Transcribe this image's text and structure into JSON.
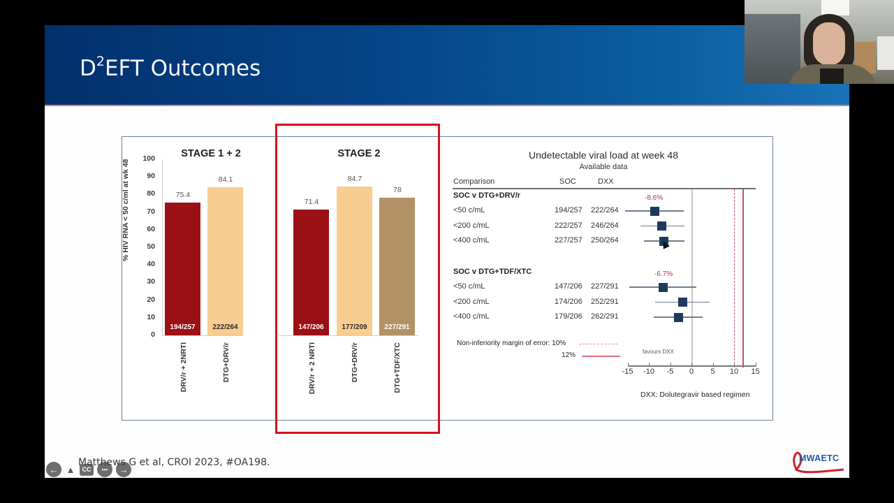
{
  "slide": {
    "title_prefix": "D",
    "title_sup": "2",
    "title_suffix": "EFT Outcomes",
    "citation": "Matthews G et al, CROI 2023, #OA198.",
    "logo_text": "MWAETC",
    "colors": {
      "header_left": "#03306d",
      "header_right": "#1a72b8",
      "highlight_box": "#d4121c",
      "bar_drv": "#9b1015",
      "bar_dtg_drv": "#f9cd90",
      "bar_dtg_tdf": "#b29265",
      "forest_marker": "#1d3a5c",
      "ni_margin": "#cf4b6a"
    }
  },
  "presentation_controls": {
    "prev_icon": "←",
    "pointer_icon": "▲",
    "cc_label": "CC",
    "more_icon": "•••",
    "next_icon": "→"
  },
  "chart_data": [
    {
      "type": "bar",
      "title": "STAGE 1 + 2",
      "ylabel": "% HIV RNA < 50 c/ml at wk 48",
      "ylim": [
        0,
        100
      ],
      "yticks": [
        0,
        10,
        20,
        30,
        40,
        50,
        60,
        70,
        80,
        90,
        100
      ],
      "categories": [
        "DRV/r + 2NRTI",
        "DTG+DRV/r"
      ],
      "values": [
        75.4,
        84.1
      ],
      "value_labels": [
        "75.4",
        "84.1"
      ],
      "counts": [
        "194/257",
        "222/264"
      ],
      "grid": false
    },
    {
      "type": "bar",
      "title": "STAGE 2",
      "ylabel": "% HIV RNA < 50 c/ml at wk 48",
      "ylim": [
        0,
        100
      ],
      "categories": [
        "DRV/r + 2 NRTI",
        "DTG+DRV/r",
        "DTG+TDF/XTC"
      ],
      "values": [
        71.4,
        84.7,
        78
      ],
      "value_labels": [
        "71.4",
        "84.7",
        "78"
      ],
      "counts": [
        "147/206",
        "177/209",
        "227/291"
      ],
      "highlighted": true,
      "grid": false
    },
    {
      "type": "forest",
      "title": "Undetectable viral load at week 48",
      "subtitle": "Available data",
      "columns": [
        "Comparison",
        "SOC",
        "DXX"
      ],
      "xlim": [
        -15,
        15
      ],
      "xticks": [
        -15,
        -10,
        -5,
        0,
        5,
        10,
        15
      ],
      "xticklabels": [
        "-15",
        "-10",
        "-5",
        "0",
        "5",
        "10",
        "15"
      ],
      "groups": [
        {
          "label": "SOC v DTG+DRV/r",
          "annotation": "-8.6%",
          "rows": [
            {
              "label": "<50 c/mL",
              "soc": "194/257",
              "dxx": "222/264",
              "estimate": -8.6,
              "ci": [
                -15.5,
                -1.8
              ]
            },
            {
              "label": "<200 c/mL",
              "soc": "222/257",
              "dxx": "246/264",
              "estimate": -6.9,
              "ci": [
                -12.0,
                -1.6
              ]
            },
            {
              "label": "<400 c/mL",
              "soc": "227/257",
              "dxx": "250/264",
              "estimate": -6.4,
              "ci": [
                -11.1,
                -1.6
              ]
            }
          ]
        },
        {
          "label": "SOC v DTG+TDF/XTC",
          "annotation": "-6.7%",
          "rows": [
            {
              "label": "<50 c/mL",
              "soc": "147/206",
              "dxx": "227/291",
              "estimate": -6.7,
              "ci": [
                -14.6,
                1.1
              ]
            },
            {
              "label": "<200 c/mL",
              "soc": "174/206",
              "dxx": "252/291",
              "estimate": -2.1,
              "ci": [
                -8.5,
                4.3
              ]
            },
            {
              "label": "<400 c/mL",
              "soc": "179/206",
              "dxx": "262/291",
              "estimate": -3.1,
              "ci": [
                -8.9,
                2.6
              ]
            }
          ]
        }
      ],
      "reference_lines": [
        {
          "x": 0,
          "style": "solid-gray"
        },
        {
          "x": 10,
          "style": "dashed-red",
          "label": "Non-inferiority margin of error: 10%"
        },
        {
          "x": 12,
          "style": "solid-red",
          "label": "12%"
        }
      ],
      "annotations": [
        "favours DXX",
        "DXX: Dolutegravir based regimen"
      ],
      "legend": {
        "ni_label": "Non-inferiority margin of error: 10%",
        "ni12_label": "12%"
      }
    }
  ]
}
